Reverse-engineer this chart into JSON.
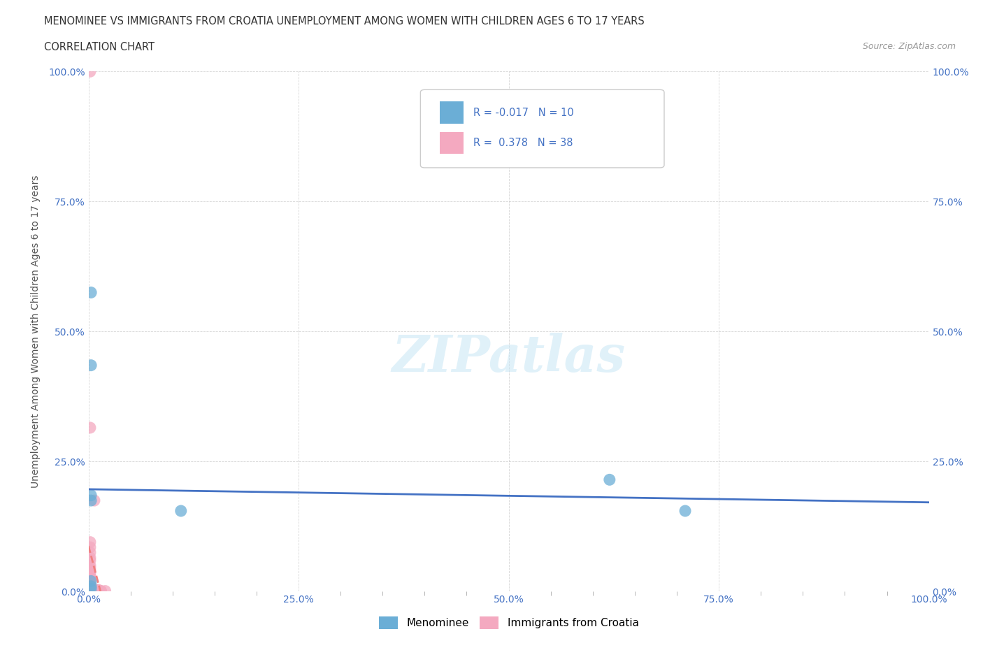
{
  "title_line1": "MENOMINEE VS IMMIGRANTS FROM CROATIA UNEMPLOYMENT AMONG WOMEN WITH CHILDREN AGES 6 TO 17 YEARS",
  "title_line2": "CORRELATION CHART",
  "source": "Source: ZipAtlas.com",
  "ylabel": "Unemployment Among Women with Children Ages 6 to 17 years",
  "xlim": [
    0,
    1.0
  ],
  "ylim": [
    0,
    1.0
  ],
  "xtick_labels": [
    "0.0%",
    "",
    "",
    "",
    "",
    "25.0%",
    "",
    "",
    "",
    "",
    "50.0%",
    "",
    "",
    "",
    "",
    "75.0%",
    "",
    "",
    "",
    "",
    "100.0%"
  ],
  "xtick_vals": [
    0,
    0.05,
    0.1,
    0.15,
    0.2,
    0.25,
    0.3,
    0.35,
    0.4,
    0.45,
    0.5,
    0.55,
    0.6,
    0.65,
    0.7,
    0.75,
    0.8,
    0.85,
    0.9,
    0.95,
    1.0
  ],
  "ytick_labels": [
    "0.0%",
    "25.0%",
    "50.0%",
    "75.0%",
    "100.0%"
  ],
  "ytick_vals": [
    0,
    0.25,
    0.5,
    0.75,
    1.0
  ],
  "menominee_color": "#6baed6",
  "croatia_color": "#f4a9c0",
  "menominee_line_color": "#4472c4",
  "croatia_line_color": "#f4a9c0",
  "menominee_R": -0.017,
  "menominee_N": 10,
  "croatia_R": 0.378,
  "croatia_N": 38,
  "watermark_text": "ZIPatlas",
  "menominee_scatter": [
    [
      0.003,
      0.575
    ],
    [
      0.003,
      0.435
    ],
    [
      0.003,
      0.175
    ],
    [
      0.003,
      0.185
    ],
    [
      0.003,
      0.02
    ],
    [
      0.003,
      0.01
    ],
    [
      0.003,
      0.005
    ],
    [
      0.62,
      0.215
    ],
    [
      0.71,
      0.155
    ],
    [
      0.11,
      0.155
    ]
  ],
  "croatia_scatter": [
    [
      0.002,
      1.0
    ],
    [
      0.002,
      0.315
    ],
    [
      0.007,
      0.175
    ],
    [
      0.002,
      0.095
    ],
    [
      0.002,
      0.085
    ],
    [
      0.002,
      0.075
    ],
    [
      0.002,
      0.065
    ],
    [
      0.002,
      0.06
    ],
    [
      0.002,
      0.05
    ],
    [
      0.002,
      0.045
    ],
    [
      0.002,
      0.04
    ],
    [
      0.002,
      0.035
    ],
    [
      0.002,
      0.03
    ],
    [
      0.002,
      0.025
    ],
    [
      0.002,
      0.02
    ],
    [
      0.002,
      0.018
    ],
    [
      0.002,
      0.016
    ],
    [
      0.002,
      0.014
    ],
    [
      0.002,
      0.012
    ],
    [
      0.002,
      0.01
    ],
    [
      0.002,
      0.008
    ],
    [
      0.002,
      0.006
    ],
    [
      0.002,
      0.004
    ],
    [
      0.002,
      0.003
    ],
    [
      0.002,
      0.002
    ],
    [
      0.002,
      0.001
    ],
    [
      0.002,
      0.0005
    ],
    [
      0.007,
      0.005
    ],
    [
      0.007,
      0.003
    ],
    [
      0.007,
      0.002
    ],
    [
      0.007,
      0.001
    ],
    [
      0.007,
      0.0005
    ],
    [
      0.012,
      0.003
    ],
    [
      0.012,
      0.002
    ],
    [
      0.012,
      0.001
    ],
    [
      0.015,
      0.001
    ],
    [
      0.015,
      0.0005
    ],
    [
      0.02,
      0.001
    ]
  ]
}
